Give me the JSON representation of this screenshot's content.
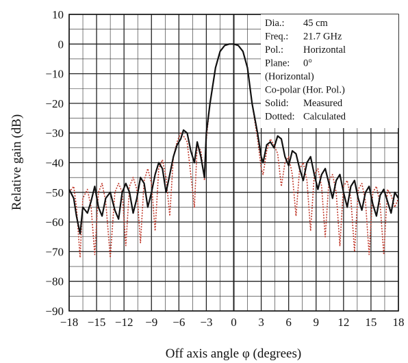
{
  "chart_data": {
    "type": "line",
    "xlabel": "Off axis angle  φ (degrees)",
    "ylabel": "Relative gain (dB)",
    "xlim": [
      -18,
      18
    ],
    "ylim": [
      -90,
      10
    ],
    "x_ticks": [
      "−18",
      "−15",
      "−12",
      "−9",
      "−6",
      "−3",
      "0",
      "3",
      "6",
      "9",
      "12",
      "15",
      "18"
    ],
    "y_ticks": [
      "10",
      "0",
      "−10",
      "−20",
      "−30",
      "−40",
      "−50",
      "−60",
      "−70",
      "−80",
      "−90"
    ],
    "grid": true,
    "info_box": {
      "position": "top-right",
      "lines": [
        {
          "key": "Dia.:",
          "value": "45 cm"
        },
        {
          "key": "Freq.:",
          "value": "21.7 GHz"
        },
        {
          "key": "Pol.:",
          "value": "Horizontal"
        },
        {
          "key": "Plane:",
          "value": "0°"
        },
        {
          "key": "",
          "value": "(Horizontal)"
        },
        {
          "key": "",
          "value": "Co-polar (Hor. Pol.)"
        },
        {
          "key": "Solid:",
          "value": "Measured"
        },
        {
          "key": "Dotted:",
          "value": "Calculated"
        }
      ]
    },
    "series": [
      {
        "name": "Measured",
        "color": "#111111",
        "style": "solid",
        "x": [
          -18,
          -17.5,
          -17.2,
          -16.8,
          -16.5,
          -16.0,
          -15.6,
          -15.2,
          -14.8,
          -14.4,
          -14.0,
          -13.5,
          -13.0,
          -12.6,
          -12.2,
          -11.8,
          -11.4,
          -11.0,
          -10.6,
          -10.2,
          -9.8,
          -9.4,
          -9.0,
          -8.6,
          -8.2,
          -7.8,
          -7.4,
          -7.0,
          -6.6,
          -6.2,
          -5.8,
          -5.5,
          -5.1,
          -4.7,
          -4.3,
          -4.0,
          -3.6,
          -3.2,
          -3.0,
          -2.6,
          -2.0,
          -1.5,
          -1.0,
          -0.5,
          0,
          0.5,
          1.0,
          1.5,
          2.0,
          2.6,
          3.0,
          3.2,
          3.6,
          4.0,
          4.4,
          4.8,
          5.2,
          5.6,
          6.0,
          6.4,
          6.8,
          7.2,
          7.6,
          8.0,
          8.4,
          8.8,
          9.2,
          9.6,
          10.0,
          10.4,
          10.8,
          11.2,
          11.6,
          12.0,
          12.4,
          12.8,
          13.2,
          13.6,
          14.0,
          14.4,
          14.8,
          15.2,
          15.6,
          16.0,
          16.4,
          16.8,
          17.2,
          17.6,
          18
        ],
        "y": [
          -49,
          -52,
          -58,
          -64,
          -55,
          -57,
          -53,
          -48,
          -55,
          -58,
          -52,
          -50,
          -56,
          -59,
          -50,
          -47,
          -50,
          -57,
          -52,
          -45,
          -47,
          -55,
          -50,
          -44,
          -40,
          -42,
          -50,
          -44,
          -38,
          -34,
          -32,
          -29,
          -30,
          -36,
          -40,
          -33,
          -38,
          -45,
          -30,
          -20,
          -8,
          -2.5,
          -0.5,
          0,
          0,
          -0.5,
          -2.5,
          -8,
          -20,
          -30,
          -38,
          -40,
          -34,
          -33,
          -35,
          -31,
          -32,
          -38,
          -41,
          -36,
          -37,
          -42,
          -46,
          -40,
          -38,
          -44,
          -49,
          -44,
          -42,
          -47,
          -52,
          -46,
          -44,
          -50,
          -55,
          -48,
          -46,
          -52,
          -56,
          -50,
          -48,
          -54,
          -58,
          -51,
          -49,
          -53,
          -57,
          -50,
          -52
        ]
      },
      {
        "name": "Calculated",
        "color": "#c0392b",
        "style": "dotted",
        "x": [
          -18,
          -17.5,
          -17.2,
          -16.8,
          -16.5,
          -16.0,
          -15.6,
          -15.2,
          -14.8,
          -14.4,
          -14.0,
          -13.5,
          -13.0,
          -12.6,
          -12.2,
          -11.8,
          -11.4,
          -11.0,
          -10.6,
          -10.2,
          -9.8,
          -9.4,
          -9.0,
          -8.6,
          -8.2,
          -7.8,
          -7.4,
          -7.0,
          -6.6,
          -6.2,
          -5.8,
          -5.5,
          -5.1,
          -4.7,
          -4.3,
          -4.0,
          -3.6,
          -3.2,
          -3.0,
          -2.6,
          -2.0,
          -1.5,
          -1.0,
          -0.5,
          0,
          0.5,
          1.0,
          1.5,
          2.0,
          2.6,
          3.0,
          3.2,
          3.6,
          4.0,
          4.4,
          4.8,
          5.2,
          5.6,
          6.0,
          6.4,
          6.8,
          7.2,
          7.6,
          8.0,
          8.4,
          8.8,
          9.2,
          9.6,
          10.0,
          10.4,
          10.8,
          11.2,
          11.6,
          12.0,
          12.4,
          12.8,
          13.2,
          13.6,
          14.0,
          14.4,
          14.8,
          15.2,
          15.6,
          16.0,
          16.4,
          16.8,
          17.2,
          17.6,
          18
        ],
        "y": [
          -50,
          -48,
          -55,
          -72,
          -52,
          -49,
          -55,
          -71,
          -50,
          -47,
          -53,
          -72,
          -50,
          -47,
          -50,
          -68,
          -48,
          -45,
          -49,
          -67,
          -46,
          -42,
          -47,
          -63,
          -42,
          -39,
          -45,
          -58,
          -38,
          -33,
          -30,
          -31,
          -33,
          -44,
          -55,
          -34,
          -36,
          -46,
          -32,
          -20,
          -8,
          -2.5,
          -0.5,
          0,
          0,
          -0.5,
          -2.5,
          -8,
          -20,
          -32,
          -42,
          -44,
          -36,
          -32,
          -34,
          -37,
          -48,
          -40,
          -38,
          -44,
          -58,
          -42,
          -40,
          -46,
          -63,
          -44,
          -42,
          -48,
          -65,
          -46,
          -44,
          -50,
          -68,
          -48,
          -46,
          -52,
          -70,
          -49,
          -47,
          -53,
          -71,
          -50,
          -48,
          -54,
          -71,
          -49,
          -51,
          -55,
          -52
        ]
      }
    ]
  }
}
